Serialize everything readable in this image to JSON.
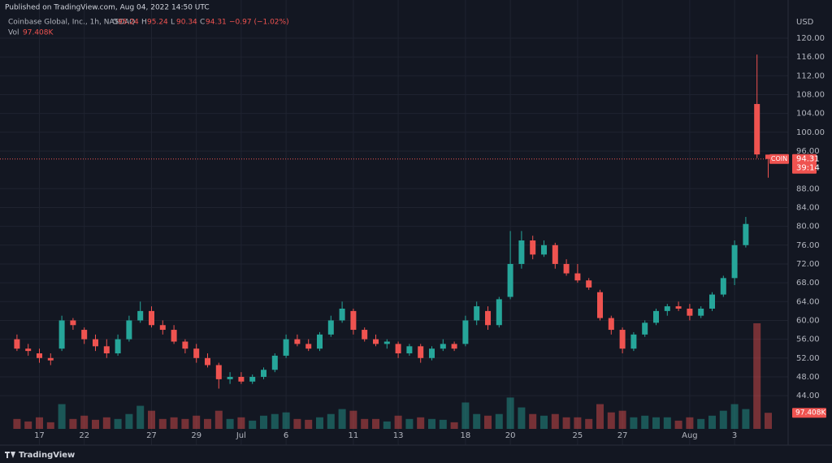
{
  "chart_data": {
    "type": "candlestick",
    "title": "Published on TradingView.com, Aug 04, 2022 14:50 UTC",
    "subtitle": "Coinbase Global, Inc., 1h, NASDAQ",
    "ohlc_letters": [
      "O",
      "H",
      "L",
      "C"
    ],
    "change": "−0.97 (−1.02%)",
    "volume_title": "Vol",
    "volume_label": "97.408K",
    "currency": "USD",
    "symbol": "COIN",
    "countdown": "39:14",
    "brand": "TradingView",
    "up_color": "#26a69a",
    "down_color": "#ef5350",
    "grid": true,
    "categories": [
      null,
      null,
      "17",
      null,
      null,
      null,
      "22",
      null,
      null,
      null,
      null,
      null,
      "27",
      null,
      null,
      null,
      "29",
      null,
      null,
      null,
      "Jul",
      null,
      null,
      null,
      "6",
      null,
      null,
      null,
      null,
      null,
      "11",
      null,
      null,
      null,
      "13",
      null,
      null,
      null,
      null,
      null,
      "18",
      null,
      null,
      null,
      "20",
      null,
      null,
      null,
      null,
      null,
      "25",
      null,
      null,
      null,
      "27",
      null,
      null,
      null,
      null,
      null,
      "Aug",
      null,
      null,
      null,
      "3",
      null,
      null,
      null
    ],
    "open": [
      56,
      54,
      53,
      52,
      54,
      60,
      58,
      56,
      54.5,
      53,
      56,
      60,
      62,
      59,
      58,
      55.5,
      54,
      52,
      50.5,
      47.5,
      48,
      47,
      48,
      49.5,
      52.5,
      56,
      55,
      54,
      57,
      60,
      62,
      58,
      56,
      55,
      55,
      53,
      54.5,
      52,
      54,
      55,
      55,
      60,
      62,
      59,
      65,
      72,
      77,
      74,
      76,
      72,
      70,
      68.5,
      66,
      60.5,
      58,
      54,
      57,
      59.5,
      62,
      63,
      62.5,
      61,
      62.5,
      65.5,
      69,
      76,
      106,
      95.24
    ],
    "high": [
      57,
      55,
      54,
      53,
      61,
      60.5,
      58.5,
      57,
      56,
      57,
      61,
      64,
      63,
      60,
      59,
      56,
      55,
      53,
      51,
      49,
      49,
      48.5,
      50,
      53,
      57,
      57,
      56,
      57.5,
      61,
      64,
      62.5,
      58.5,
      57,
      56,
      55.5,
      55,
      55,
      54.5,
      56,
      55.5,
      61,
      64,
      63,
      65,
      79,
      79,
      78,
      77,
      76.5,
      73,
      72,
      69,
      66.5,
      61,
      58.5,
      57.5,
      60,
      62.5,
      63.5,
      64,
      63.5,
      63,
      66,
      69.5,
      77,
      82,
      116.5,
      95.24
    ],
    "low": [
      53.5,
      52.5,
      51,
      50.5,
      53.5,
      58,
      55,
      53.5,
      52,
      52.5,
      55.5,
      59.5,
      58.5,
      57,
      55,
      53,
      51,
      50,
      45.5,
      46.5,
      46.5,
      46.5,
      47.5,
      49,
      52,
      54.5,
      53.5,
      53.5,
      56.5,
      59.5,
      57,
      55.5,
      54.5,
      54,
      52,
      52.5,
      51,
      51.5,
      53.5,
      53.5,
      54.5,
      59,
      58,
      58.5,
      64.5,
      71,
      73,
      73.5,
      71,
      69.5,
      68,
      66.5,
      60,
      57,
      53,
      53.5,
      56.5,
      59,
      61,
      62,
      60,
      60.5,
      62,
      65,
      67.5,
      75.5,
      94.5,
      90.34
    ],
    "close": [
      54,
      53.5,
      52,
      51.5,
      60,
      59,
      56,
      54.5,
      53,
      56,
      60,
      62,
      59,
      58,
      55.5,
      54,
      52,
      50.5,
      47.5,
      48,
      47,
      48,
      49.5,
      52.5,
      56,
      55,
      54,
      57,
      60,
      62.5,
      58,
      56,
      55,
      55.5,
      53,
      54.5,
      52,
      54,
      55,
      54,
      60,
      63,
      59,
      64.5,
      72,
      77,
      74,
      76,
      72,
      70,
      68.5,
      67,
      60.5,
      58,
      54,
      57,
      59.5,
      62,
      63,
      62.5,
      61,
      62.5,
      65.5,
      69,
      76,
      80.5,
      95.28,
      94.31
    ],
    "volume": [
      60000,
      45000,
      70000,
      40000,
      150000,
      60000,
      80000,
      55000,
      70000,
      60000,
      90000,
      140000,
      110000,
      60000,
      70000,
      60000,
      80000,
      60000,
      110000,
      60000,
      70000,
      50000,
      80000,
      90000,
      100000,
      60000,
      55000,
      70000,
      90000,
      120000,
      110000,
      60000,
      60000,
      45000,
      80000,
      60000,
      70000,
      60000,
      55000,
      40000,
      160000,
      90000,
      80000,
      90000,
      190000,
      130000,
      90000,
      80000,
      90000,
      70000,
      70000,
      60000,
      150000,
      100000,
      110000,
      70000,
      80000,
      70000,
      70000,
      50000,
      70000,
      60000,
      80000,
      110000,
      150000,
      120000,
      640000,
      97408
    ],
    "ylim": [
      34.87,
      125.0
    ],
    "yticks": [
      {
        "value": 44,
        "label": "44.00"
      },
      {
        "value": 48,
        "label": "48.00"
      },
      {
        "value": 52,
        "label": "52.00"
      },
      {
        "value": 56,
        "label": "56.00"
      },
      {
        "value": 60,
        "label": "60.00"
      },
      {
        "value": 64,
        "label": "64.00"
      },
      {
        "value": 68,
        "label": "68.00"
      },
      {
        "value": 72,
        "label": "72.00"
      },
      {
        "value": 76,
        "label": "76.00"
      },
      {
        "value": 80,
        "label": "80.00"
      },
      {
        "value": 84,
        "label": "84.00"
      },
      {
        "value": 88,
        "label": "88.00"
      },
      {
        "value": 96,
        "label": "96.00"
      },
      {
        "value": 100,
        "label": "100.00"
      },
      {
        "value": 104,
        "label": "104.00"
      },
      {
        "value": 108,
        "label": "108.00"
      },
      {
        "value": 112,
        "label": "112.00"
      },
      {
        "value": 116,
        "label": "116.00"
      },
      {
        "value": 120,
        "label": "120.00"
      }
    ]
  }
}
